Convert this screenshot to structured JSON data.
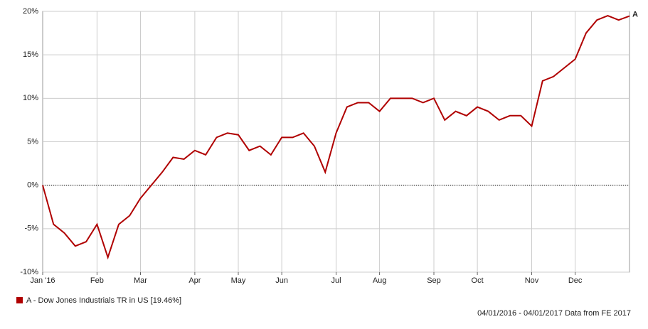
{
  "chart_data": {
    "type": "line",
    "categories": [
      "Jan '16",
      null,
      null,
      null,
      null,
      "Feb",
      null,
      null,
      null,
      "Mar",
      null,
      null,
      null,
      null,
      "Apr",
      null,
      null,
      null,
      "May",
      null,
      null,
      null,
      "Jun",
      null,
      null,
      null,
      null,
      "Jul",
      null,
      null,
      null,
      "Aug",
      null,
      null,
      null,
      null,
      "Sep",
      null,
      null,
      null,
      "Oct",
      null,
      null,
      null,
      null,
      "Nov",
      null,
      null,
      null,
      "Dec",
      null,
      null,
      null,
      null,
      null
    ],
    "series": [
      {
        "name": "A - Dow Jones Industrials TR in US [19.46%]",
        "end_label": "A",
        "color": "#b00000",
        "values": [
          0,
          -4.5,
          -5.5,
          -7,
          -6.5,
          -4.5,
          -8.3,
          -4.5,
          -3.5,
          -1.5,
          0,
          1.5,
          3.2,
          3,
          4,
          3.5,
          5.5,
          6,
          5.8,
          4,
          4.5,
          3.5,
          5.5,
          5.5,
          6,
          4.5,
          1.5,
          6,
          9,
          9.5,
          9.5,
          8.5,
          10,
          10,
          10,
          9.5,
          10,
          7.5,
          8.5,
          8,
          9,
          8.5,
          7.5,
          8,
          8,
          6.8,
          12,
          12.5,
          13.5,
          14.5,
          17.5,
          19,
          19.5,
          19,
          19.46
        ]
      }
    ],
    "ylim": [
      -10,
      20
    ],
    "yticks": [
      {
        "value": -10,
        "label": "-10%"
      },
      {
        "value": -5,
        "label": "-5%"
      },
      {
        "value": 0,
        "label": "0%"
      },
      {
        "value": 5,
        "label": "5%"
      },
      {
        "value": 10,
        "label": "10%"
      },
      {
        "value": 15,
        "label": "15%"
      },
      {
        "value": 20,
        "label": "20%"
      }
    ],
    "zero_line": true,
    "grid": true,
    "footer": "04/01/2016 - 04/01/2017 Data from FE 2017"
  }
}
